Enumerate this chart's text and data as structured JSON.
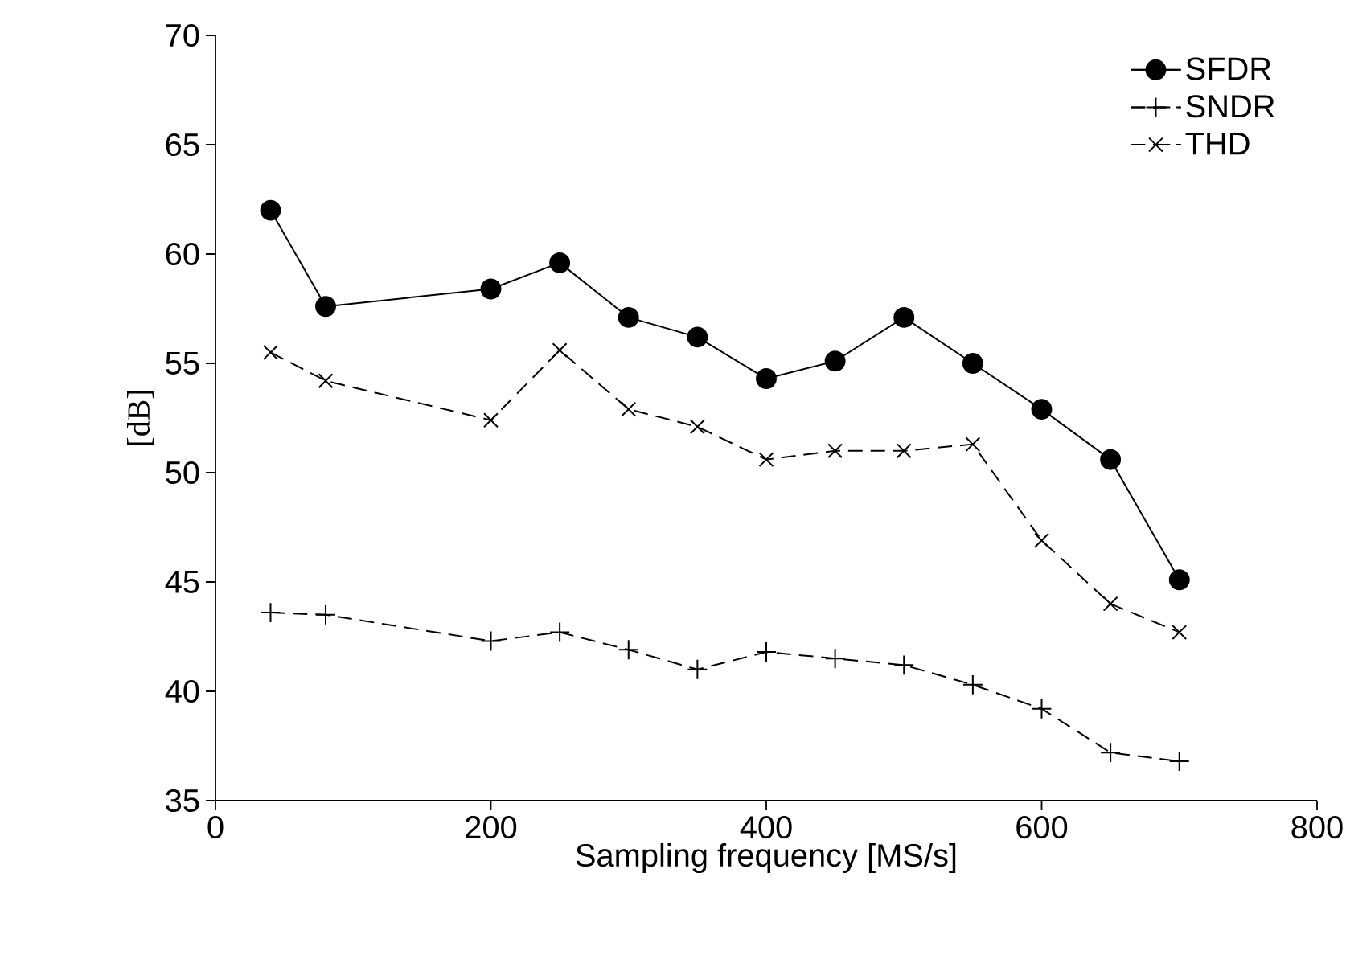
{
  "chart_data": {
    "type": "line",
    "xlabel": "Sampling frequency [MS/s]",
    "ylabel": "[dB]",
    "xlim": [
      0,
      800
    ],
    "xticks": [
      0,
      200,
      400,
      600,
      800
    ],
    "ylim": [
      35,
      70
    ],
    "yticks": [
      35,
      40,
      45,
      50,
      55,
      60,
      65,
      70
    ],
    "grid": false,
    "legend": "top right",
    "x": [
      40,
      80,
      200,
      250,
      300,
      350,
      400,
      450,
      500,
      550,
      600,
      650,
      700
    ],
    "series": [
      {
        "name": "SFDR",
        "color": "#000000",
        "marker": "circle",
        "line_style": "solid",
        "values": [
          62.0,
          57.6,
          58.4,
          59.6,
          57.1,
          56.2,
          54.3,
          55.1,
          57.1,
          55.0,
          52.9,
          50.6,
          45.1
        ]
      },
      {
        "name": "SNDR",
        "color": "#000000",
        "marker": "plus",
        "line_style": "dashed",
        "values": [
          43.6,
          43.5,
          42.3,
          42.7,
          41.9,
          41.0,
          41.8,
          41.5,
          41.2,
          40.3,
          39.2,
          37.2,
          36.8
        ]
      },
      {
        "name": "THD",
        "color": "#000000",
        "marker": "cross",
        "line_style": "dashed",
        "values": [
          55.5,
          54.2,
          52.4,
          55.6,
          52.9,
          52.1,
          50.6,
          51.0,
          51.0,
          51.3,
          46.9,
          44.0,
          42.7
        ]
      }
    ]
  }
}
